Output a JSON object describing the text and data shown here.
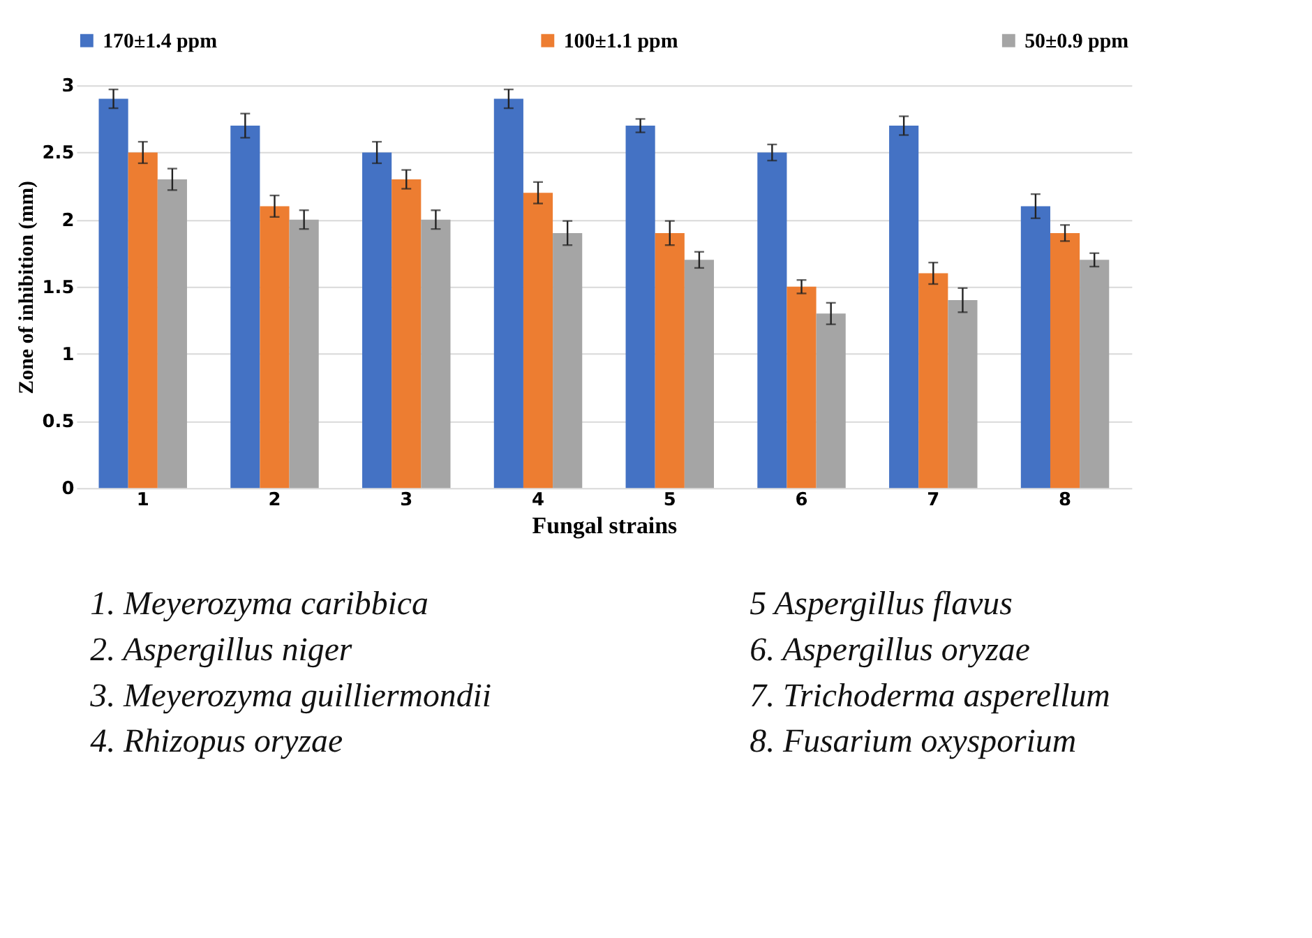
{
  "chart_data": {
    "type": "bar",
    "xlabel": "Fungal strains",
    "ylabel": "Zone of inhibition (mm)",
    "categories": [
      "1",
      "2",
      "3",
      "4",
      "5",
      "6",
      "7",
      "8"
    ],
    "series": [
      {
        "name": "170±1.4 ppm",
        "color": "#4472c4",
        "values": [
          2.9,
          2.7,
          2.5,
          2.9,
          2.7,
          2.5,
          2.7,
          2.1
        ],
        "errors": [
          0.07,
          0.09,
          0.08,
          0.07,
          0.05,
          0.06,
          0.07,
          0.09
        ]
      },
      {
        "name": "100±1.1 ppm",
        "color": "#ed7d31",
        "values": [
          2.5,
          2.1,
          2.3,
          2.2,
          1.9,
          1.5,
          1.6,
          1.9
        ],
        "errors": [
          0.08,
          0.08,
          0.07,
          0.08,
          0.09,
          0.05,
          0.08,
          0.06
        ]
      },
      {
        "name": "50±0.9 ppm",
        "color": "#a5a5a5",
        "values": [
          2.3,
          2.0,
          2.0,
          1.9,
          1.7,
          1.3,
          1.4,
          1.7
        ],
        "errors": [
          0.08,
          0.07,
          0.07,
          0.09,
          0.06,
          0.08,
          0.09,
          0.05
        ]
      }
    ],
    "ylim": [
      0,
      3
    ],
    "yticks": [
      0,
      0.5,
      1,
      1.5,
      2,
      2.5,
      3
    ],
    "grid": "y",
    "legend": "top",
    "annotations": [
      "1.    Meyerozyma caribbica",
      "2.    Aspergillus niger",
      "3.    Meyerozyma guilliermondii",
      "4.    Rhizopus oryzae",
      "5 Aspergillus flavus",
      "6. Aspergillus oryzae",
      "7. Trichoderma asperellum",
      "8. Fusarium oxysporium"
    ]
  }
}
